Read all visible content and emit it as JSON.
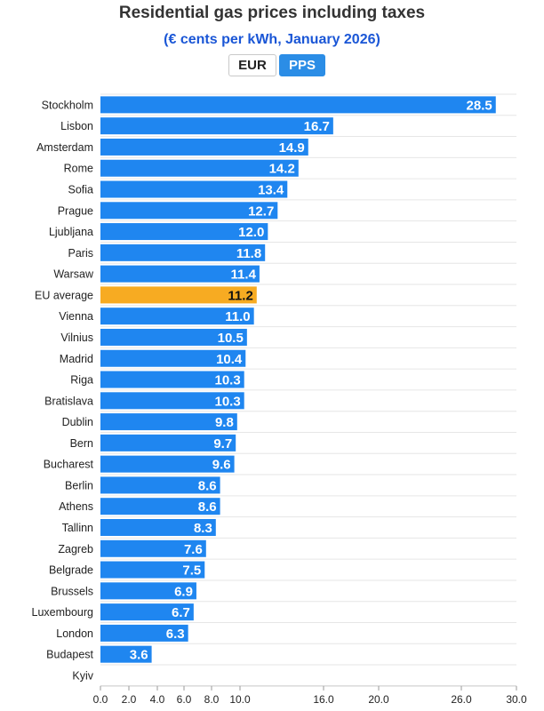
{
  "title": "Residential gas prices including taxes",
  "subtitle": "(€ cents per kWh, January 2026)",
  "toggle": {
    "eur_label": "EUR",
    "pps_label": "PPS",
    "selected": "PPS"
  },
  "colors": {
    "bar": "#1f86f0",
    "highlight": "#f7ab22",
    "grid": "#e6e6e6",
    "title": "#333333",
    "subtitle": "#1a56d6"
  },
  "chart_data": {
    "type": "bar",
    "orientation": "horizontal",
    "title": "Residential gas prices including taxes",
    "subtitle": "(€ cents per kWh, January 2026)",
    "categories": [
      "Stockholm",
      "Lisbon",
      "Amsterdam",
      "Rome",
      "Sofia",
      "Prague",
      "Ljubljana",
      "Paris",
      "Warsaw",
      "EU average",
      "Vienna",
      "Vilnius",
      "Madrid",
      "Riga",
      "Bratislava",
      "Dublin",
      "Bern",
      "Bucharest",
      "Berlin",
      "Athens",
      "Tallinn",
      "Zagreb",
      "Belgrade",
      "Brussels",
      "Luxembourg",
      "London",
      "Budapest",
      "Kyiv"
    ],
    "values": [
      28.5,
      16.7,
      14.9,
      14.2,
      13.4,
      12.7,
      12.0,
      11.8,
      11.4,
      11.2,
      11.0,
      10.5,
      10.4,
      10.3,
      10.3,
      9.8,
      9.7,
      9.6,
      8.6,
      8.6,
      8.3,
      7.6,
      7.5,
      6.9,
      6.7,
      6.3,
      3.6,
      null
    ],
    "value_labels": [
      "28.5",
      "16.7",
      "14.9",
      "14.2",
      "13.4",
      "12.7",
      "12.0",
      "11.8",
      "11.4",
      "11.2",
      "11.0",
      "10.5",
      "10.4",
      "10.3",
      "10.3",
      "9.8",
      "9.7",
      "9.6",
      "8.6",
      "8.6",
      "8.3",
      "7.6",
      "7.5",
      "6.9",
      "6.7",
      "6.3",
      "3.6",
      ""
    ],
    "highlight": "EU average",
    "xlim": [
      0,
      30
    ],
    "x_ticks": [
      0,
      2,
      4,
      6,
      8,
      10,
      16,
      20,
      26,
      30
    ],
    "x_tick_labels": [
      "0.0",
      "2.0",
      "4.0",
      "6.0",
      "8.0",
      "10.0",
      "16.0",
      "20.0",
      "26.0",
      "30.0"
    ],
    "x_scale": "piecewise-linear",
    "grid": true,
    "xlabel": "",
    "ylabel": ""
  }
}
